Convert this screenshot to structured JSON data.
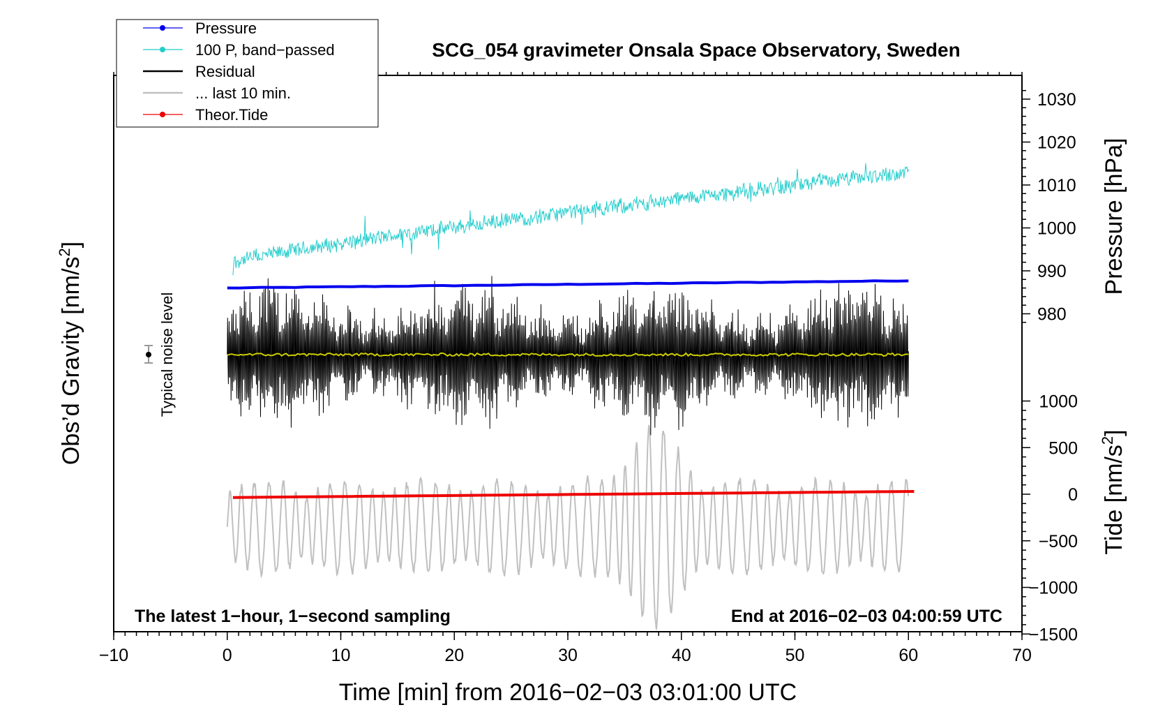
{
  "chart_data": {
    "type": "line",
    "title": "SCG_054 gravimeter Onsala Space Observatory, Sweden",
    "xlabel": "Time [min] from 2016−02−03 03:01:00 UTC",
    "ylabel_left": "Obs’d Gravity [nm/s²]",
    "ylabel_left_base": "Obs’d Gravity [nm/s",
    "ylabel_right_top": "Pressure [hPa]",
    "ylabel_right_bottom": "Tide [nm/s²]",
    "ylabel_right_bottom_base": "Tide [nm/s",
    "superscript": "2",
    "xlim": [
      -10,
      70
    ],
    "xticks": [
      -10,
      0,
      10,
      20,
      30,
      40,
      50,
      60,
      70
    ],
    "xtick_labels": [
      "−10",
      "0",
      "10",
      "20",
      "30",
      "40",
      "50",
      "60",
      "70"
    ],
    "pressure_axis": {
      "ticks": [
        980,
        990,
        1000,
        1010,
        1020,
        1030
      ],
      "tick_labels": [
        "980",
        "990",
        "1000",
        "1010",
        "1020",
        "1030"
      ]
    },
    "tide_axis": {
      "ticks": [
        1000,
        500,
        0,
        -500,
        -1000,
        -1500
      ],
      "tick_labels": [
        "1000",
        "500",
        "0",
        "−500",
        "−1000",
        "−1500"
      ]
    },
    "legend": {
      "position": "top-left",
      "entries": [
        {
          "label": "Pressure",
          "color": "#0000ee",
          "marker": true
        },
        {
          "label": "100 P, band−passed",
          "color": "#22cccc",
          "marker": true
        },
        {
          "label": "Residual",
          "color": "#000000",
          "marker": false
        },
        {
          "label": "... last 10 min.",
          "color": "#c0c0c0",
          "marker": false
        },
        {
          "label": "Theor.Tide",
          "color": "#ee0000",
          "marker": true
        }
      ]
    },
    "series": [
      {
        "name": "Pressure",
        "color": "#0000ee",
        "x": [
          0,
          60
        ],
        "y_hpa": [
          986.0,
          987.7
        ]
      },
      {
        "name": "100 P, band-passed",
        "color": "#22cccc",
        "x": [
          0.5,
          60
        ],
        "y_hpa_trend": [
          992,
          1013
        ],
        "noise_hpa": 1.6
      },
      {
        "name": "Residual",
        "color": "#000000",
        "x": [
          0,
          60
        ],
        "amplitude_nm_s2": 70
      },
      {
        "name": "Residual smoothed",
        "color": "#cccc00",
        "x": [
          0,
          60
        ]
      },
      {
        "name": "... last 10 min.",
        "color": "#c0c0c0",
        "x": [
          0,
          60
        ],
        "center_nm_s2": -350,
        "amplitude_nm_s2": 500
      },
      {
        "name": "Theor.Tide",
        "color": "#ee0000",
        "x": [
          0.5,
          60.5
        ],
        "y_nm_s2": [
          -35,
          30
        ]
      }
    ],
    "annotations": {
      "noise_label": "Typical noise level",
      "bottom_left": "The latest 1−hour, 1−second sampling",
      "bottom_right": "End at 2016−02−03 04:00:59 UTC"
    }
  }
}
